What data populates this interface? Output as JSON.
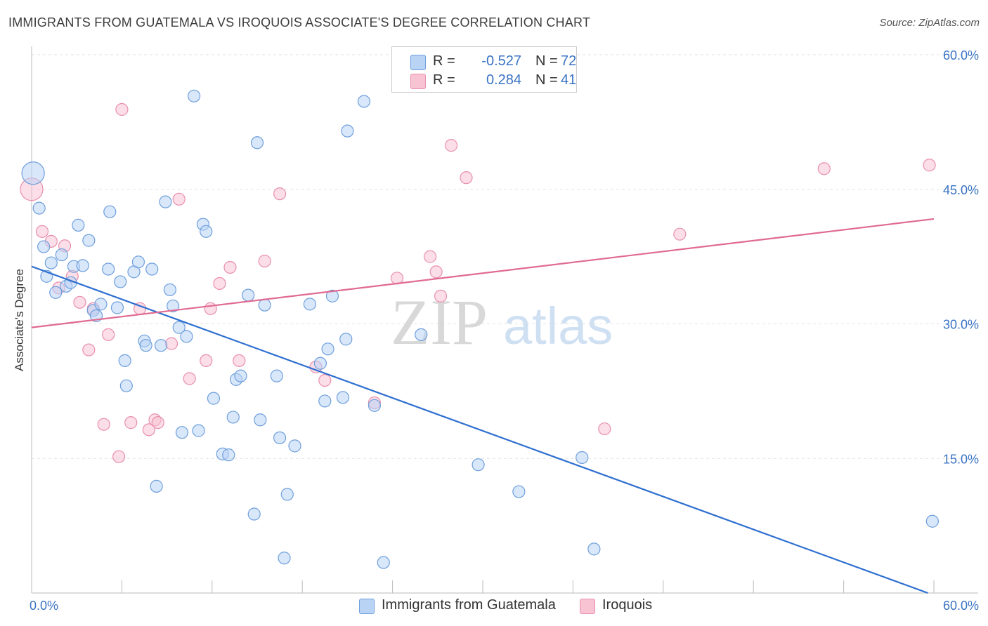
{
  "header": {
    "title": "IMMIGRANTS FROM GUATEMALA VS IROQUOIS ASSOCIATE'S DEGREE CORRELATION CHART",
    "source": "Source: ZipAtlas.com"
  },
  "watermark": {
    "zip": "ZIP",
    "atlas": "atlas"
  },
  "colors": {
    "blue_fill": "#b9d3f5",
    "blue_stroke": "#6e9fdc",
    "blue_line": "#2f6fd0",
    "pink_fill": "#f8c3d3",
    "pink_stroke": "#e98fae",
    "pink_line": "#e06a92",
    "tick_label": "#3a73c4",
    "grid": "#e2e2e2"
  },
  "legend": {
    "rows": [
      {
        "series": "Immigrants from Guatemala",
        "r_label": "R =",
        "r_value": "-0.527",
        "n_label": "N =",
        "n_value": "72"
      },
      {
        "series": "Iroquois",
        "r_label": "R =",
        "r_value": "0.284",
        "n_label": "N =",
        "n_value": "41"
      }
    ]
  },
  "chart_data": {
    "type": "scatter",
    "title": "IMMIGRANTS FROM GUATEMALA VS IROQUOIS ASSOCIATE'S DEGREE CORRELATION CHART",
    "xlabel": "",
    "ylabel": "Associate's Degree",
    "xlim": [
      0,
      60
    ],
    "ylim": [
      0,
      60
    ],
    "x_tick_labels": [
      "0.0%",
      "60.0%"
    ],
    "y_ticks": [
      15,
      30,
      45,
      60
    ],
    "y_tick_labels": [
      "15.0%",
      "30.0%",
      "45.0%",
      "60.0%"
    ],
    "grid": true,
    "legend_position": "bottom",
    "series": [
      {
        "name": "Immigrants from Guatemala",
        "color": "#b9d3f5",
        "trend": {
          "x": [
            0,
            59.6
          ],
          "y": [
            36.4,
            0
          ]
        },
        "points": [
          {
            "x": 0.1,
            "y": 46.8,
            "big": true
          },
          {
            "x": 0.5,
            "y": 42.9
          },
          {
            "x": 0.8,
            "y": 38.6
          },
          {
            "x": 1.0,
            "y": 35.3
          },
          {
            "x": 1.3,
            "y": 36.8
          },
          {
            "x": 1.6,
            "y": 33.5
          },
          {
            "x": 2.0,
            "y": 37.7
          },
          {
            "x": 2.3,
            "y": 34.2
          },
          {
            "x": 2.6,
            "y": 34.6
          },
          {
            "x": 2.8,
            "y": 36.4
          },
          {
            "x": 3.1,
            "y": 41.0
          },
          {
            "x": 3.4,
            "y": 36.5
          },
          {
            "x": 3.8,
            "y": 39.3
          },
          {
            "x": 4.1,
            "y": 31.5
          },
          {
            "x": 4.3,
            "y": 30.9
          },
          {
            "x": 4.6,
            "y": 32.2
          },
          {
            "x": 5.1,
            "y": 36.1
          },
          {
            "x": 5.2,
            "y": 42.5
          },
          {
            "x": 5.7,
            "y": 31.8
          },
          {
            "x": 5.9,
            "y": 34.7
          },
          {
            "x": 6.2,
            "y": 25.9
          },
          {
            "x": 6.3,
            "y": 23.1
          },
          {
            "x": 6.8,
            "y": 35.8
          },
          {
            "x": 7.1,
            "y": 36.9
          },
          {
            "x": 7.5,
            "y": 28.1
          },
          {
            "x": 7.6,
            "y": 27.6
          },
          {
            "x": 8.0,
            "y": 36.1
          },
          {
            "x": 8.3,
            "y": 11.9
          },
          {
            "x": 8.6,
            "y": 27.6
          },
          {
            "x": 8.9,
            "y": 43.6
          },
          {
            "x": 9.2,
            "y": 33.8
          },
          {
            "x": 9.4,
            "y": 32.0
          },
          {
            "x": 9.8,
            "y": 29.6
          },
          {
            "x": 10.0,
            "y": 17.9
          },
          {
            "x": 10.3,
            "y": 28.6
          },
          {
            "x": 10.8,
            "y": 55.4
          },
          {
            "x": 11.1,
            "y": 18.1
          },
          {
            "x": 11.4,
            "y": 41.1
          },
          {
            "x": 11.6,
            "y": 40.3
          },
          {
            "x": 12.1,
            "y": 21.7
          },
          {
            "x": 12.7,
            "y": 15.5
          },
          {
            "x": 13.1,
            "y": 15.4
          },
          {
            "x": 13.4,
            "y": 19.6
          },
          {
            "x": 13.6,
            "y": 23.8
          },
          {
            "x": 13.9,
            "y": 24.2
          },
          {
            "x": 14.4,
            "y": 33.2
          },
          {
            "x": 14.8,
            "y": 8.8
          },
          {
            "x": 15.0,
            "y": 50.2
          },
          {
            "x": 15.2,
            "y": 19.3
          },
          {
            "x": 15.5,
            "y": 32.1
          },
          {
            "x": 16.3,
            "y": 24.2
          },
          {
            "x": 16.5,
            "y": 17.3
          },
          {
            "x": 16.8,
            "y": 3.9
          },
          {
            "x": 17.0,
            "y": 11.0
          },
          {
            "x": 17.5,
            "y": 16.4
          },
          {
            "x": 18.5,
            "y": 32.2
          },
          {
            "x": 19.2,
            "y": 25.6
          },
          {
            "x": 19.5,
            "y": 21.4
          },
          {
            "x": 19.7,
            "y": 27.2
          },
          {
            "x": 20.0,
            "y": 33.1
          },
          {
            "x": 20.7,
            "y": 21.8
          },
          {
            "x": 20.9,
            "y": 28.3
          },
          {
            "x": 21.0,
            "y": 51.5
          },
          {
            "x": 22.1,
            "y": 54.8
          },
          {
            "x": 22.8,
            "y": 20.9
          },
          {
            "x": 23.4,
            "y": 3.4
          },
          {
            "x": 25.9,
            "y": 28.8
          },
          {
            "x": 29.7,
            "y": 14.3
          },
          {
            "x": 32.4,
            "y": 11.3
          },
          {
            "x": 36.6,
            "y": 15.1
          },
          {
            "x": 37.4,
            "y": 4.9
          },
          {
            "x": 59.9,
            "y": 8.0
          }
        ]
      },
      {
        "name": "Iroquois",
        "color": "#f8c3d3",
        "trend": {
          "x": [
            0,
            60
          ],
          "y": [
            29.6,
            41.7
          ]
        },
        "points": [
          {
            "x": 0.0,
            "y": 45.0,
            "big": true
          },
          {
            "x": 0.7,
            "y": 40.3
          },
          {
            "x": 1.3,
            "y": 39.2
          },
          {
            "x": 1.8,
            "y": 34.0
          },
          {
            "x": 2.2,
            "y": 38.7
          },
          {
            "x": 2.7,
            "y": 35.3
          },
          {
            "x": 3.2,
            "y": 32.4
          },
          {
            "x": 3.8,
            "y": 27.1
          },
          {
            "x": 4.1,
            "y": 31.7
          },
          {
            "x": 4.8,
            "y": 18.8
          },
          {
            "x": 5.1,
            "y": 28.8
          },
          {
            "x": 5.8,
            "y": 15.2
          },
          {
            "x": 6.0,
            "y": 53.9
          },
          {
            "x": 6.6,
            "y": 19.0
          },
          {
            "x": 7.2,
            "y": 31.7
          },
          {
            "x": 7.8,
            "y": 18.2
          },
          {
            "x": 8.2,
            "y": 19.3
          },
          {
            "x": 8.4,
            "y": 19.0
          },
          {
            "x": 9.3,
            "y": 27.8
          },
          {
            "x": 9.8,
            "y": 43.9
          },
          {
            "x": 10.5,
            "y": 23.9
          },
          {
            "x": 11.6,
            "y": 25.9
          },
          {
            "x": 11.9,
            "y": 31.7
          },
          {
            "x": 12.5,
            "y": 34.5
          },
          {
            "x": 13.2,
            "y": 36.3
          },
          {
            "x": 13.8,
            "y": 25.9
          },
          {
            "x": 15.5,
            "y": 37.0
          },
          {
            "x": 16.5,
            "y": 44.5
          },
          {
            "x": 18.9,
            "y": 25.2
          },
          {
            "x": 19.5,
            "y": 23.7
          },
          {
            "x": 22.8,
            "y": 21.2
          },
          {
            "x": 24.3,
            "y": 35.1
          },
          {
            "x": 26.5,
            "y": 37.5
          },
          {
            "x": 26.9,
            "y": 35.8
          },
          {
            "x": 27.2,
            "y": 33.1
          },
          {
            "x": 27.9,
            "y": 49.9
          },
          {
            "x": 28.9,
            "y": 46.3
          },
          {
            "x": 38.1,
            "y": 18.3
          },
          {
            "x": 43.1,
            "y": 40.0
          },
          {
            "x": 52.7,
            "y": 47.3
          },
          {
            "x": 59.7,
            "y": 47.7
          }
        ]
      }
    ]
  }
}
